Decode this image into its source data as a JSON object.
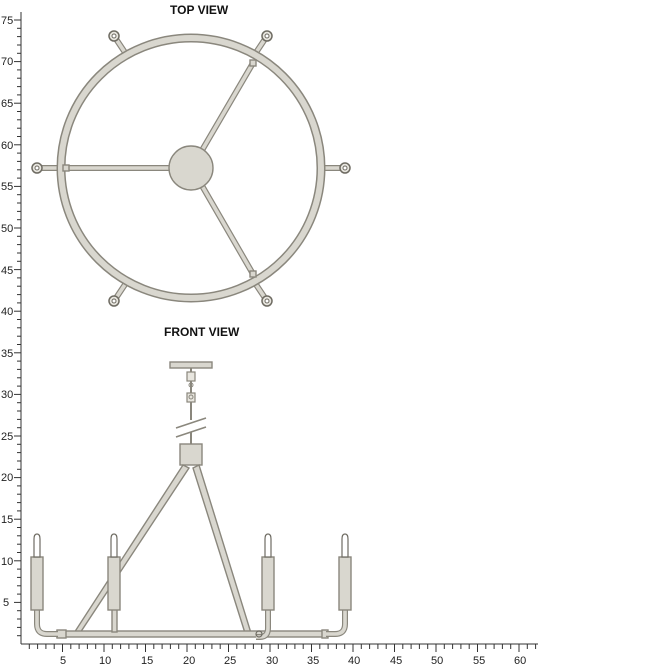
{
  "top_view": {
    "title": "TOP VIEW"
  },
  "front_view": {
    "title": "FRONT VIEW"
  },
  "y_axis": {
    "labels": [
      "75",
      "70",
      "65",
      "60",
      "55",
      "50",
      "45",
      "40",
      "35",
      "30",
      "25",
      "20",
      "15",
      "10",
      "5"
    ]
  },
  "x_axis": {
    "labels": [
      "5",
      "10",
      "15",
      "20",
      "25",
      "30",
      "35",
      "40",
      "45",
      "50",
      "55",
      "60"
    ]
  },
  "colors": {
    "fixture_fill": "#d9d7cf",
    "fixture_stroke": "#8a877d"
  }
}
